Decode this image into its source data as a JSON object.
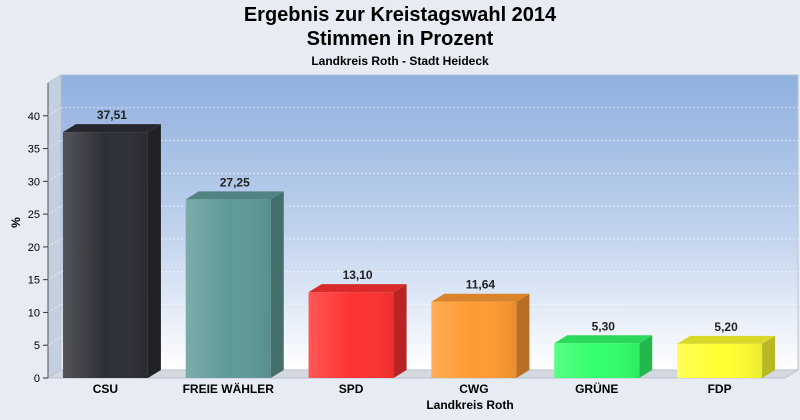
{
  "chart_data": {
    "type": "bar",
    "title": "Ergebnis zur Kreistagswahl 2014",
    "subtitle": "Stimmen in Prozent",
    "subtitle2": "Landkreis Roth - Stadt Heideck",
    "xlabel": "Landkreis Roth",
    "ylabel": "%",
    "categories": [
      "CSU",
      "FREIE WÄHLER",
      "SPD",
      "CWG",
      "GRÜNE",
      "FDP"
    ],
    "values": [
      37.51,
      27.25,
      13.1,
      11.64,
      5.3,
      5.2
    ],
    "value_labels": [
      "37,51",
      "27,25",
      "13,10",
      "11,64",
      "5,30",
      "5,20"
    ],
    "colors": [
      "#2d2f36",
      "#5f9a98",
      "#ff3232",
      "#ff9a32",
      "#32ff6a",
      "#ffff32"
    ],
    "ylim": [
      0,
      45
    ],
    "yticks": [
      0,
      5,
      10,
      15,
      20,
      25,
      30,
      35,
      40
    ],
    "grid": true
  }
}
